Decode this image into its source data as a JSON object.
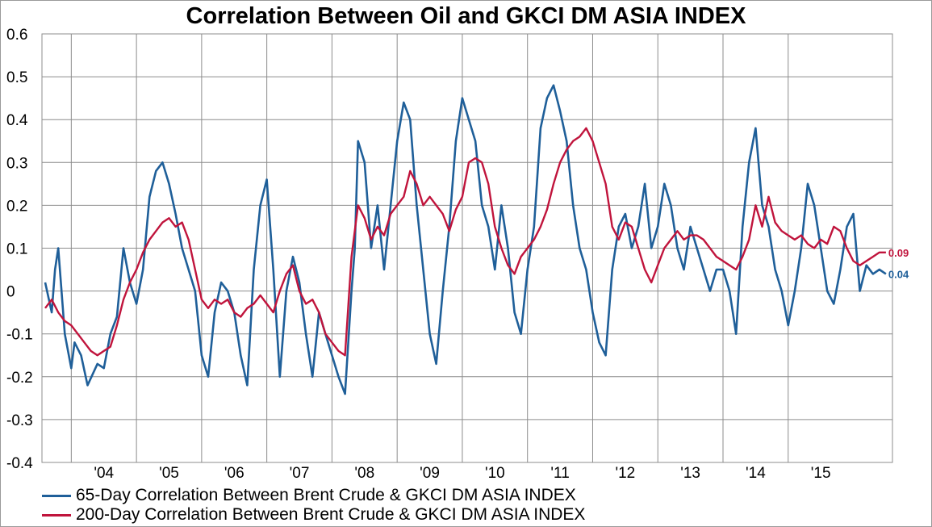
{
  "chart_data": {
    "type": "line",
    "title": "Correlation Between Oil and GKCI DM ASIA INDEX",
    "xlabel": "",
    "ylabel": "",
    "ylim": [
      -0.4,
      0.6
    ],
    "y_ticks": [
      "0.6",
      "0.5",
      "0.4",
      "0.3",
      "0.2",
      "0.1",
      "0",
      "-0.1",
      "-0.2",
      "-0.3",
      "-0.4"
    ],
    "x_tick_labels": [
      "'04",
      "'05",
      "'06",
      "'07",
      "'08",
      "'09",
      "'10",
      "'11",
      "'12",
      "'13",
      "'14",
      "'15"
    ],
    "x_range": [
      2003.55,
      2016.6
    ],
    "grid": true,
    "legend_position": "bottom-left",
    "series": [
      {
        "name": "65-Day Correlation Between Brent Crude & GKCI DM ASIA INDEX",
        "color": "#1f5f99",
        "end_label": "0.04",
        "x": [
          2003.6,
          2003.7,
          2003.75,
          2003.8,
          2003.9,
          2004.0,
          2004.05,
          2004.15,
          2004.25,
          2004.4,
          2004.5,
          2004.6,
          2004.7,
          2004.8,
          2004.9,
          2005.0,
          2005.1,
          2005.2,
          2005.3,
          2005.4,
          2005.5,
          2005.6,
          2005.7,
          2005.8,
          2005.9,
          2006.0,
          2006.1,
          2006.2,
          2006.3,
          2006.4,
          2006.5,
          2006.6,
          2006.7,
          2006.8,
          2006.9,
          2007.0,
          2007.1,
          2007.2,
          2007.3,
          2007.4,
          2007.5,
          2007.6,
          2007.7,
          2007.8,
          2007.9,
          2008.0,
          2008.1,
          2008.2,
          2008.3,
          2008.35,
          2008.4,
          2008.5,
          2008.6,
          2008.7,
          2008.8,
          2008.9,
          2009.0,
          2009.1,
          2009.2,
          2009.3,
          2009.4,
          2009.5,
          2009.6,
          2009.7,
          2009.8,
          2009.9,
          2010.0,
          2010.1,
          2010.2,
          2010.3,
          2010.4,
          2010.5,
          2010.6,
          2010.7,
          2010.8,
          2010.9,
          2011.0,
          2011.1,
          2011.2,
          2011.3,
          2011.4,
          2011.5,
          2011.6,
          2011.7,
          2011.8,
          2011.9,
          2012.0,
          2012.1,
          2012.2,
          2012.3,
          2012.4,
          2012.5,
          2012.6,
          2012.7,
          2012.8,
          2012.9,
          2013.0,
          2013.1,
          2013.2,
          2013.3,
          2013.4,
          2013.5,
          2013.6,
          2013.7,
          2013.8,
          2013.9,
          2014.0,
          2014.1,
          2014.2,
          2014.3,
          2014.4,
          2014.5,
          2014.6,
          2014.7,
          2014.8,
          2014.9,
          2015.0,
          2015.1,
          2015.2,
          2015.3,
          2015.4,
          2015.5,
          2015.6,
          2015.7,
          2015.8,
          2015.9,
          2016.0,
          2016.1,
          2016.2,
          2016.3,
          2016.4,
          2016.5
        ],
        "values": [
          0.02,
          -0.05,
          0.05,
          0.1,
          -0.1,
          -0.18,
          -0.12,
          -0.15,
          -0.22,
          -0.17,
          -0.18,
          -0.1,
          -0.06,
          0.1,
          0.02,
          -0.03,
          0.05,
          0.22,
          0.28,
          0.3,
          0.25,
          0.18,
          0.1,
          0.05,
          0.0,
          -0.15,
          -0.2,
          -0.05,
          0.02,
          0.0,
          -0.05,
          -0.15,
          -0.22,
          0.05,
          0.2,
          0.26,
          0.05,
          -0.2,
          0.0,
          0.08,
          0.02,
          -0.1,
          -0.2,
          -0.05,
          -0.1,
          -0.15,
          -0.2,
          -0.24,
          0.0,
          0.1,
          0.35,
          0.3,
          0.1,
          0.2,
          0.05,
          0.2,
          0.35,
          0.44,
          0.4,
          0.2,
          0.05,
          -0.1,
          -0.17,
          0.0,
          0.15,
          0.35,
          0.45,
          0.4,
          0.35,
          0.2,
          0.15,
          0.05,
          0.2,
          0.1,
          -0.05,
          -0.1,
          0.05,
          0.15,
          0.38,
          0.45,
          0.48,
          0.42,
          0.35,
          0.2,
          0.1,
          0.05,
          -0.05,
          -0.12,
          -0.15,
          0.05,
          0.15,
          0.18,
          0.1,
          0.15,
          0.25,
          0.1,
          0.15,
          0.25,
          0.2,
          0.1,
          0.05,
          0.15,
          0.1,
          0.05,
          0.0,
          0.05,
          0.05,
          0.0,
          -0.1,
          0.15,
          0.3,
          0.38,
          0.2,
          0.15,
          0.05,
          0.0,
          -0.08,
          0.0,
          0.1,
          0.25,
          0.2,
          0.1,
          0.0,
          -0.03,
          0.05,
          0.15,
          0.18,
          0.0,
          0.06,
          0.04,
          0.05,
          0.04
        ]
      },
      {
        "name": "200-Day Correlation Between Brent Crude & GKCI DM ASIA INDEX",
        "color": "#c0143c",
        "end_label": "0.09",
        "x": [
          2003.6,
          2003.7,
          2003.8,
          2003.9,
          2004.0,
          2004.1,
          2004.2,
          2004.3,
          2004.4,
          2004.5,
          2004.6,
          2004.7,
          2004.8,
          2004.9,
          2005.0,
          2005.1,
          2005.2,
          2005.3,
          2005.4,
          2005.5,
          2005.6,
          2005.7,
          2005.8,
          2005.9,
          2006.0,
          2006.1,
          2006.2,
          2006.3,
          2006.4,
          2006.5,
          2006.6,
          2006.7,
          2006.8,
          2006.9,
          2007.0,
          2007.1,
          2007.2,
          2007.3,
          2007.4,
          2007.5,
          2007.6,
          2007.7,
          2007.8,
          2007.9,
          2008.0,
          2008.1,
          2008.2,
          2008.3,
          2008.4,
          2008.5,
          2008.6,
          2008.7,
          2008.8,
          2008.9,
          2009.0,
          2009.1,
          2009.2,
          2009.3,
          2009.4,
          2009.5,
          2009.6,
          2009.7,
          2009.8,
          2009.9,
          2010.0,
          2010.1,
          2010.2,
          2010.3,
          2010.4,
          2010.5,
          2010.6,
          2010.7,
          2010.8,
          2010.9,
          2011.0,
          2011.1,
          2011.2,
          2011.3,
          2011.4,
          2011.5,
          2011.6,
          2011.7,
          2011.8,
          2011.9,
          2012.0,
          2012.1,
          2012.2,
          2012.3,
          2012.4,
          2012.5,
          2012.6,
          2012.7,
          2012.8,
          2012.9,
          2013.0,
          2013.1,
          2013.2,
          2013.3,
          2013.4,
          2013.5,
          2013.6,
          2013.7,
          2013.8,
          2013.9,
          2014.0,
          2014.1,
          2014.2,
          2014.3,
          2014.4,
          2014.5,
          2014.6,
          2014.7,
          2014.8,
          2014.9,
          2015.0,
          2015.1,
          2015.2,
          2015.3,
          2015.4,
          2015.5,
          2015.6,
          2015.7,
          2015.8,
          2015.9,
          2016.0,
          2016.1,
          2016.2,
          2016.3,
          2016.4,
          2016.5
        ],
        "values": [
          -0.04,
          -0.02,
          -0.05,
          -0.07,
          -0.08,
          -0.1,
          -0.12,
          -0.14,
          -0.15,
          -0.14,
          -0.13,
          -0.08,
          -0.02,
          0.02,
          0.05,
          0.09,
          0.12,
          0.14,
          0.16,
          0.17,
          0.15,
          0.16,
          0.12,
          0.05,
          -0.02,
          -0.04,
          -0.02,
          -0.03,
          -0.02,
          -0.05,
          -0.06,
          -0.04,
          -0.03,
          -0.01,
          -0.03,
          -0.05,
          0.0,
          0.04,
          0.06,
          0.0,
          -0.03,
          -0.02,
          -0.05,
          -0.1,
          -0.12,
          -0.14,
          -0.15,
          0.08,
          0.2,
          0.17,
          0.12,
          0.15,
          0.13,
          0.18,
          0.2,
          0.22,
          0.28,
          0.25,
          0.2,
          0.22,
          0.2,
          0.18,
          0.14,
          0.19,
          0.22,
          0.3,
          0.31,
          0.3,
          0.25,
          0.15,
          0.1,
          0.06,
          0.04,
          0.08,
          0.1,
          0.12,
          0.15,
          0.19,
          0.25,
          0.3,
          0.33,
          0.35,
          0.36,
          0.38,
          0.35,
          0.3,
          0.25,
          0.15,
          0.12,
          0.16,
          0.15,
          0.1,
          0.05,
          0.02,
          0.06,
          0.1,
          0.12,
          0.14,
          0.12,
          0.13,
          0.13,
          0.12,
          0.1,
          0.08,
          0.07,
          0.06,
          0.05,
          0.08,
          0.12,
          0.2,
          0.15,
          0.22,
          0.16,
          0.14,
          0.13,
          0.12,
          0.13,
          0.11,
          0.1,
          0.12,
          0.11,
          0.15,
          0.14,
          0.1,
          0.07,
          0.06,
          0.07,
          0.08,
          0.09,
          0.09
        ]
      }
    ]
  }
}
